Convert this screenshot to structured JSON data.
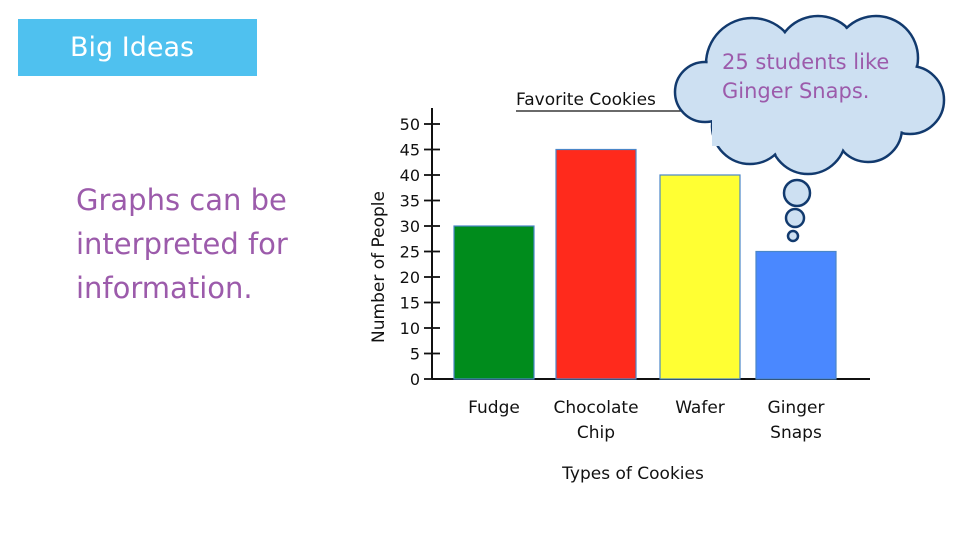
{
  "header": {
    "badge_label": "Big Ideas"
  },
  "main": {
    "idea_text": "Graphs can be interpreted for information."
  },
  "callout": {
    "text": "25 students like Ginger Snaps."
  },
  "colors": {
    "badge": "#4fc1ef",
    "accent_text": "#9c5bab",
    "cloud_fill": "#cde0f2",
    "bars": [
      "#008c1c",
      "#ff2a1c",
      "#ffff33",
      "#4a88ff"
    ]
  },
  "chart_data": {
    "type": "bar",
    "title": "Favorite Cookies",
    "xlabel": "Types of Cookies",
    "ylabel": "Number of People",
    "categories": [
      [
        "Fudge"
      ],
      [
        "Chocolate",
        "Chip"
      ],
      [
        "Wafer"
      ],
      [
        "Ginger",
        "Snaps"
      ]
    ],
    "values": [
      30,
      45,
      40,
      25
    ],
    "ylim": [
      0,
      50
    ],
    "yticks": [
      0,
      5,
      10,
      15,
      20,
      25,
      30,
      35,
      40,
      45,
      50
    ],
    "grid": false,
    "legend": "none"
  }
}
